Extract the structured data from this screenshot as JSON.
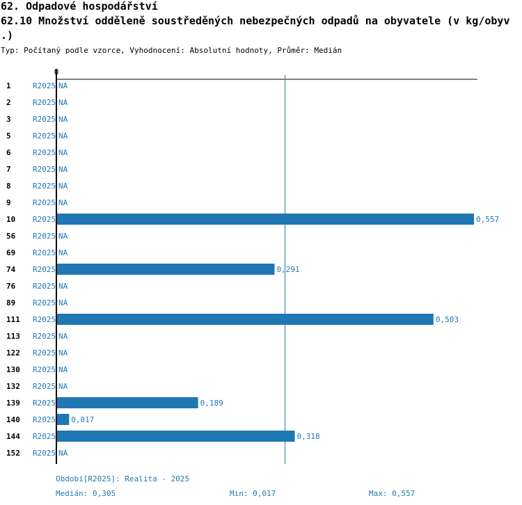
{
  "header": {
    "section": "62. Odpadové hospodářství",
    "title_line1": "62.10 Množství odděleně soustředěných nebezpečných odpadů na obyvatele (v kg/obyv",
    "title_line2": ".)",
    "subtitle": "Typ: Počítaný podle vzorce, Vyhodnocení: Absolutní hodnoty, Průměr: Medián"
  },
  "colors": {
    "bar": "#1f77b4",
    "text_accent": "#1f77b4",
    "axis": "#000000"
  },
  "chart_data": {
    "type": "bar",
    "orientation": "horizontal",
    "axis_zero_label": "0",
    "xlim": [
      0,
      0.557
    ],
    "median_line": 0.305,
    "series_label": "R2025",
    "na_label": "NA",
    "categories": [
      "1",
      "2",
      "3",
      "5",
      "6",
      "7",
      "8",
      "9",
      "10",
      "56",
      "69",
      "74",
      "76",
      "89",
      "111",
      "113",
      "122",
      "130",
      "132",
      "139",
      "140",
      "144",
      "152"
    ],
    "values": [
      null,
      null,
      null,
      null,
      null,
      null,
      null,
      null,
      0.557,
      null,
      null,
      0.291,
      null,
      null,
      0.503,
      null,
      null,
      null,
      null,
      0.189,
      0.017,
      0.318,
      null
    ],
    "value_labels": [
      "NA",
      "NA",
      "NA",
      "NA",
      "NA",
      "NA",
      "NA",
      "NA",
      "0,557",
      "NA",
      "NA",
      "0,291",
      "NA",
      "NA",
      "0,503",
      "NA",
      "NA",
      "NA",
      "NA",
      "0,189",
      "0,017",
      "0,318",
      "NA"
    ]
  },
  "footer": {
    "period": "Období[R2025]: Realita - 2025",
    "median": "Medián: 0,305",
    "min": "Min: 0,017",
    "max": "Max: 0,557"
  }
}
